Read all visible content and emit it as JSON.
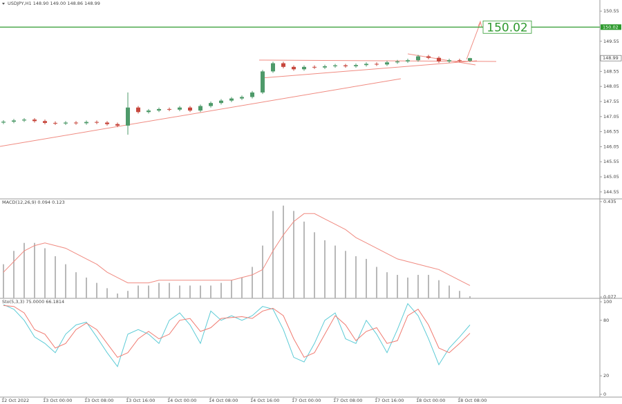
{
  "chart_data": [
    {
      "type": "candlestick",
      "title": "USDJPY,H1 148.90 149.00 148.86 148.99",
      "categories": [
        "12 Oct 2022",
        null,
        null,
        null,
        "13 Oct 00:00",
        null,
        null,
        null,
        "13 Oct 08:00",
        null,
        null,
        null,
        "13 Oct 16:00",
        null,
        null,
        null,
        "14 Oct 00:00",
        null,
        null,
        null,
        "14 Oct 08:00",
        null,
        null,
        null,
        "14 Oct 16:00",
        null,
        null,
        null,
        "17 Oct 00:00",
        null,
        null,
        null,
        "17 Oct 08:00",
        null,
        null,
        null,
        "17 Oct 16:00",
        null,
        null,
        null,
        "18 Oct 00:00",
        null,
        null,
        null,
        "18 Oct 08:00",
        null
      ],
      "open": [
        146.85,
        146.88,
        146.92,
        146.95,
        146.9,
        146.84,
        146.82,
        146.85,
        146.83,
        146.87,
        146.85,
        146.8,
        146.75,
        147.35,
        147.2,
        147.25,
        147.3,
        147.28,
        147.35,
        147.25,
        147.4,
        147.5,
        147.58,
        147.65,
        147.7,
        147.85,
        148.55,
        148.82,
        148.7,
        148.62,
        148.7,
        148.68,
        148.72,
        148.75,
        148.72,
        148.76,
        148.8,
        148.78,
        148.85,
        148.88,
        148.92,
        149.05,
        149.0,
        148.88,
        148.92,
        148.9
      ],
      "high": [
        146.93,
        146.97,
        147.0,
        147.0,
        146.95,
        146.89,
        146.9,
        146.9,
        146.92,
        146.92,
        146.9,
        146.85,
        147.85,
        147.4,
        147.3,
        147.35,
        147.35,
        147.4,
        147.4,
        147.45,
        147.55,
        147.63,
        147.7,
        147.75,
        147.9,
        148.6,
        148.87,
        148.87,
        148.75,
        148.75,
        148.75,
        148.77,
        148.8,
        148.8,
        148.81,
        148.85,
        148.85,
        148.9,
        148.93,
        148.97,
        149.1,
        149.1,
        149.05,
        148.97,
        148.97,
        149.0
      ],
      "low": [
        146.8,
        146.83,
        146.87,
        146.85,
        146.79,
        146.77,
        146.77,
        146.78,
        146.78,
        146.8,
        146.75,
        146.7,
        146.45,
        147.15,
        147.15,
        147.2,
        147.23,
        147.23,
        147.2,
        147.2,
        147.35,
        147.45,
        147.53,
        147.6,
        147.65,
        147.8,
        148.5,
        148.65,
        148.57,
        148.57,
        148.63,
        148.63,
        148.67,
        148.67,
        148.67,
        148.71,
        148.73,
        148.73,
        148.8,
        148.83,
        148.87,
        148.95,
        148.83,
        148.83,
        148.85,
        148.86
      ],
      "close": [
        146.88,
        146.92,
        146.95,
        146.9,
        146.84,
        146.82,
        146.85,
        146.83,
        146.87,
        146.85,
        146.8,
        146.75,
        147.35,
        147.2,
        147.25,
        147.3,
        147.28,
        147.35,
        147.25,
        147.4,
        147.5,
        147.58,
        147.65,
        147.7,
        147.85,
        148.55,
        148.82,
        148.7,
        148.62,
        148.7,
        148.68,
        148.72,
        148.75,
        148.72,
        148.76,
        148.8,
        148.78,
        148.85,
        148.88,
        148.92,
        149.05,
        149.0,
        148.88,
        148.92,
        148.9,
        148.99
      ],
      "up_color": "#4e9a6a",
      "down_color": "#c7473d",
      "level": {
        "value": 150.02,
        "color": "#2e9a2e"
      },
      "ylim": [
        144.34,
        150.92
      ],
      "yticks": [
        150.55,
        149.55,
        148.55,
        148.05,
        147.55,
        147.05,
        146.55,
        146.05,
        145.55,
        145.05,
        144.55
      ]
    },
    {
      "type": "macd",
      "title": "MACD(12,26,9) 0.094 0.123",
      "series": [
        {
          "name": "histogram",
          "color": "#b8b8b8",
          "values": [
            0.2,
            0.25,
            0.28,
            0.28,
            0.26,
            0.23,
            0.2,
            0.17,
            0.15,
            0.13,
            0.11,
            0.09,
            0.1,
            0.12,
            0.12,
            0.13,
            0.13,
            0.12,
            0.12,
            0.12,
            0.12,
            0.13,
            0.14,
            0.15,
            0.19,
            0.27,
            0.4,
            0.42,
            0.4,
            0.36,
            0.32,
            0.29,
            0.27,
            0.25,
            0.23,
            0.22,
            0.19,
            0.17,
            0.16,
            0.15,
            0.16,
            0.16,
            0.14,
            0.12,
            0.1,
            0.08
          ]
        },
        {
          "name": "signal",
          "color": "#f08a80",
          "values": [
            0.17,
            0.21,
            0.25,
            0.27,
            0.28,
            0.27,
            0.26,
            0.24,
            0.22,
            0.2,
            0.17,
            0.15,
            0.13,
            0.13,
            0.13,
            0.14,
            0.14,
            0.14,
            0.14,
            0.14,
            0.14,
            0.14,
            0.14,
            0.15,
            0.16,
            0.18,
            0.25,
            0.31,
            0.36,
            0.39,
            0.39,
            0.37,
            0.35,
            0.33,
            0.3,
            0.28,
            0.26,
            0.24,
            0.22,
            0.21,
            0.2,
            0.19,
            0.18,
            0.16,
            0.14,
            0.12
          ]
        }
      ],
      "ylim": [
        0.072,
        0.44
      ],
      "yticks": [
        0.077,
        0.435
      ]
    },
    {
      "type": "line",
      "title": "Sto(5,3,3) 75.0000 66.1814",
      "series": [
        {
          "name": "%K",
          "color": "#5ccbd6",
          "values": [
            97,
            92,
            80,
            62,
            55,
            45,
            65,
            75,
            78,
            62,
            45,
            30,
            65,
            70,
            65,
            55,
            80,
            88,
            75,
            55,
            90,
            80,
            85,
            80,
            85,
            95,
            92,
            70,
            40,
            35,
            55,
            80,
            88,
            60,
            55,
            80,
            65,
            45,
            70,
            98,
            85,
            60,
            32,
            50,
            62,
            75
          ]
        },
        {
          "name": "%D",
          "color": "#f07a70",
          "values": [
            96,
            95,
            88,
            70,
            65,
            50,
            55,
            70,
            77,
            70,
            55,
            40,
            45,
            60,
            68,
            60,
            65,
            80,
            82,
            68,
            72,
            82,
            83,
            84,
            82,
            90,
            93,
            85,
            60,
            40,
            45,
            65,
            85,
            75,
            58,
            68,
            72,
            55,
            58,
            85,
            92,
            75,
            50,
            45,
            55,
            66
          ]
        }
      ],
      "ylim": [
        -3,
        103
      ],
      "yticks": [
        0,
        20,
        80,
        100
      ]
    }
  ]
}
